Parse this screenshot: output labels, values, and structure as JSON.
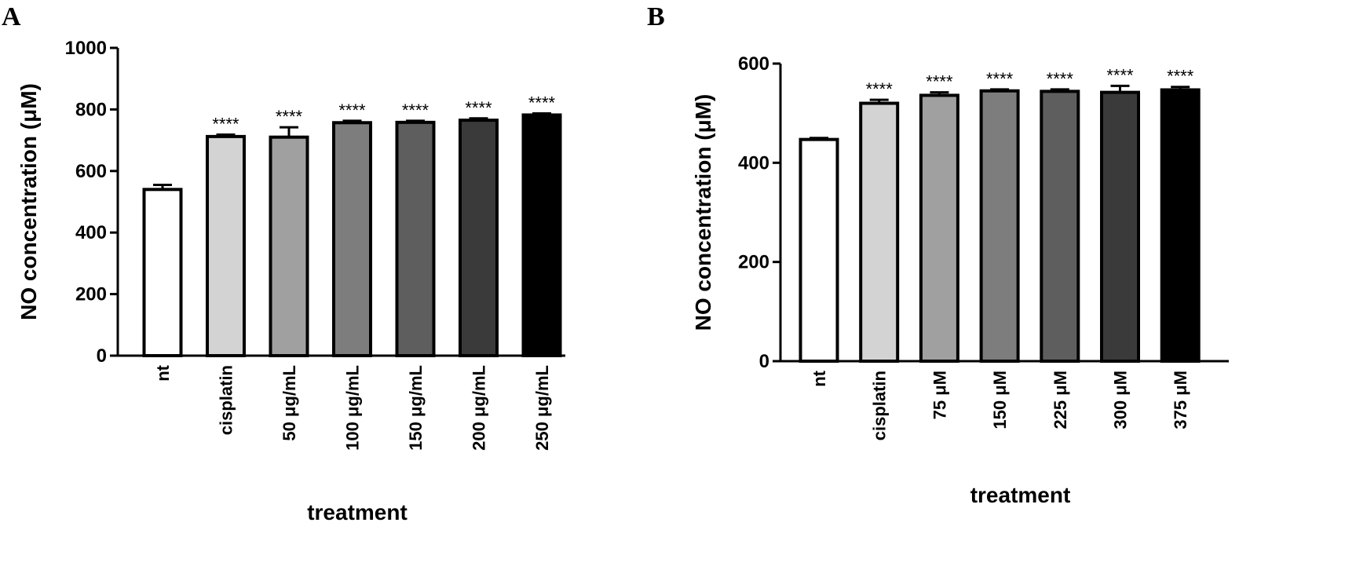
{
  "chart_data": [
    {
      "type": "bar",
      "panel": "A",
      "xlabel": "treatment",
      "ylabel": "NO concentration (μM)",
      "ylim": [
        0,
        1000
      ],
      "yticks": [
        "0",
        "200",
        "400",
        "600",
        "800",
        "1000"
      ],
      "grid": false,
      "categories": [
        "nt",
        "cisplatin",
        "50 μg/mL",
        "100 μg/mL",
        "150 μg/mL",
        "200 μg/mL",
        "250 μg/mL"
      ],
      "values": [
        540,
        712,
        710,
        757,
        758,
        765,
        782
      ],
      "errors": [
        15,
        6,
        32,
        6,
        5,
        6,
        5
      ],
      "colors": [
        "#ffffff",
        "#d3d3d3",
        "#a0a0a0",
        "#7d7d7d",
        "#5e5e5e",
        "#3a3a3a",
        "#000000"
      ],
      "significance": [
        "",
        "****",
        "****",
        "****",
        "****",
        "****",
        "****"
      ]
    },
    {
      "type": "bar",
      "panel": "B",
      "xlabel": "treatment",
      "ylabel": "NO concentration (μM)",
      "ylim": [
        0,
        600
      ],
      "yticks": [
        "0",
        "200",
        "400",
        "600"
      ],
      "grid": false,
      "categories": [
        "nt",
        "cisplatin",
        "75 μM",
        "150 μM",
        "225 μM",
        "300 μM",
        "375 μM"
      ],
      "values": [
        447,
        520,
        536,
        545,
        544,
        542,
        547
      ],
      "errors": [
        3,
        7,
        6,
        3,
        4,
        13,
        6
      ],
      "colors": [
        "#ffffff",
        "#d3d3d3",
        "#a0a0a0",
        "#7d7d7d",
        "#5e5e5e",
        "#3a3a3a",
        "#000000"
      ],
      "significance": [
        "",
        "****",
        "****",
        "****",
        "****",
        "****",
        "****"
      ]
    }
  ]
}
